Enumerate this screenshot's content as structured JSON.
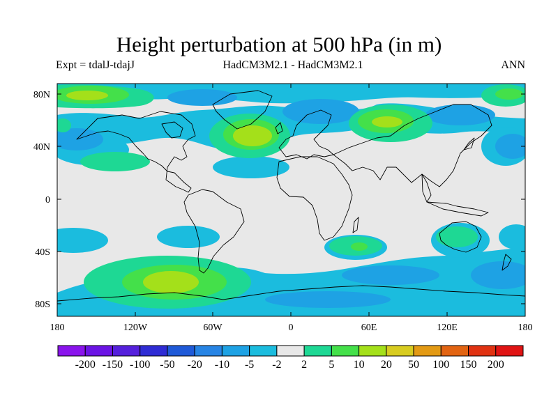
{
  "title": "Height perturbation at 500 hPa (in m)",
  "subtitle_left": "Expt = tdalJ-tdajJ",
  "subtitle_center": "HadCM3M2.1 - HadCM3M2.1",
  "subtitle_right": "ANN",
  "lat_labels": [
    "80N",
    "40N",
    "0",
    "40S",
    "80S"
  ],
  "lon_labels": [
    "180",
    "120W",
    "60W",
    "0",
    "60E",
    "120E",
    "180"
  ],
  "colorbar": {
    "labels": [
      "-200",
      "-150",
      "-100",
      "-50",
      "-20",
      "-10",
      "-5",
      "-2",
      "2",
      "5",
      "10",
      "20",
      "50",
      "100",
      "150",
      "200"
    ],
    "colors": [
      "#8a14ec",
      "#6b14e4",
      "#5520dc",
      "#2f2cd4",
      "#1f5ad8",
      "#2784e4",
      "#1ea2e4",
      "#1bbcde",
      "#e8e8e8",
      "#1ed894",
      "#44e04a",
      "#a4e01a",
      "#d8cc20",
      "#e39a14",
      "#e26412",
      "#e03212",
      "#e01414"
    ]
  }
}
